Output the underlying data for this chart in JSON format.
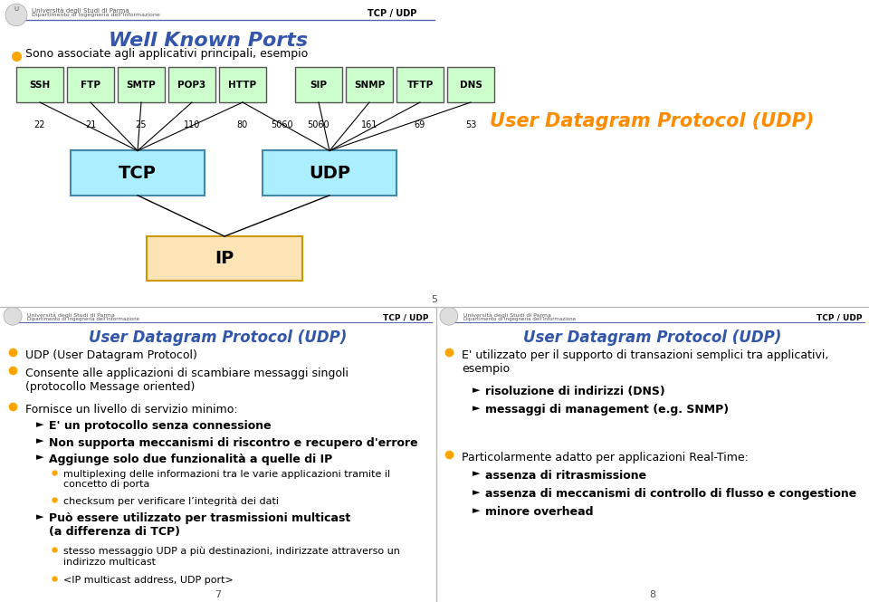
{
  "bg_color": "#ffffff",
  "header_line_color": "#5566aa",
  "header_label": "TCP / UDP",
  "slide1": {
    "title": "Well Known Ports",
    "title_color": "#3355aa",
    "bullet_color": "#FFA500",
    "bullet1": "Sono associate agli applicativi principali, esempio",
    "protocols_top": [
      "SSH",
      "FTP",
      "SMTP",
      "POP3",
      "HTTP",
      "SIP",
      "SNMP",
      "TFTP",
      "DNS"
    ],
    "port_numbers_left": [
      "22",
      "21",
      "25",
      "110",
      "80",
      "5060"
    ],
    "port_numbers_right": [
      "5060",
      "161",
      "69",
      "53"
    ],
    "protocol_box_color": "#ccffcc",
    "protocol_box_border": "#555555",
    "tcp_box_color": "#aaeeff",
    "udp_box_color": "#aaeeff",
    "ip_box_color": "#fce4b6",
    "right_title": "User Datagram Protocol (UDP)",
    "right_title_color": "#FF8C00",
    "page_num": "5"
  },
  "slide2": {
    "header_label": "TCP / UDP",
    "title": "User Datagram Protocol (UDP)",
    "title_color": "#3355aa",
    "bullet_color": "#FFA500",
    "bullets": [
      "UDP (User Datagram Protocol)",
      "Consente alle applicazioni di scambiare messaggi singoli\n(protocollo Message oriented)",
      "Fornisce un livello di servizio minimo:"
    ],
    "sub_bullets_bold": [
      "E' un protocollo senza connessione",
      "Non supporta meccanismi di riscontro e recupero d'errore",
      "Aggiunge solo due funzionalità a quelle di IP"
    ],
    "sub_sub_bullets": [
      "multiplexing delle informazioni tra le varie applicazioni tramite il\nconcetto di porta",
      "checksum per verificare l’integrità dei dati"
    ],
    "bold_bullet4": "Può essere utilizzato per trasmissioni multicast\n(a differenza di TCP)",
    "sub_sub_bullets2": [
      "stesso messaggio UDP a più destinazioni, indirizzate attraverso un\nindirizzo multicast",
      "<IP multicast address, UDP port>"
    ],
    "page_num": "7"
  },
  "slide3": {
    "header_label": "TCP / UDP",
    "title": "User Datagram Protocol (UDP)",
    "title_color": "#3355aa",
    "bullet_color": "#FFA500",
    "bullet1": "E' utilizzato per il supporto di transazioni semplici tra applicativi,\nesempio",
    "sub_bullets1": [
      "risoluzione di indirizzi (DNS)",
      "messaggi di management (e.g. SNMP)"
    ],
    "bullet2": "Particolarmente adatto per applicazioni Real-Time:",
    "sub_bullets2": [
      "assenza di ritrasmissione",
      "assenza di meccanismi di controllo di flusso e congestione",
      "minore overhead"
    ],
    "page_num": "8"
  }
}
